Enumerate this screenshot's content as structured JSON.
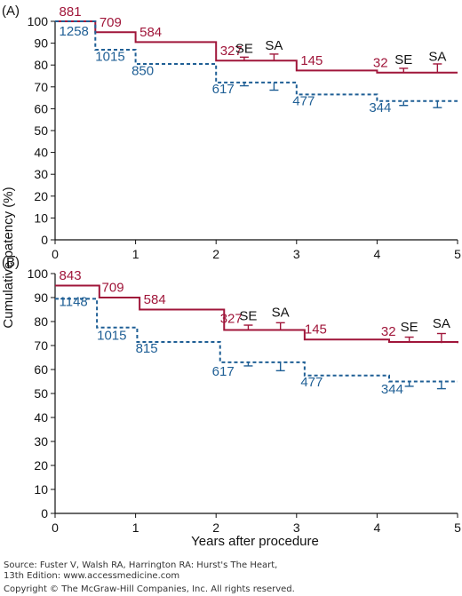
{
  "figure": {
    "ylabel": "Cumulative patency (%)",
    "xlabel": "Years after procedure"
  },
  "chart_data": [
    {
      "type": "line",
      "panel_label": "(A)",
      "xlim": [
        0,
        5
      ],
      "ylim": [
        0,
        100
      ],
      "x_ticks": [
        "0",
        "1",
        "2",
        "3",
        "4",
        "5"
      ],
      "y_ticks": [
        "0",
        "10",
        "20",
        "30",
        "40",
        "50",
        "60",
        "70",
        "80",
        "90",
        "100"
      ],
      "series": [
        {
          "color": "#a0163a",
          "style": "solid",
          "steps": [
            [
              0,
              100
            ],
            [
              0.5,
              95
            ],
            [
              1,
              90.5
            ],
            [
              2,
              82
            ],
            [
              3,
              77.5
            ],
            [
              4,
              76.5
            ],
            [
              5,
              76.5
            ]
          ],
          "at_risk": [
            {
              "x": 0.05,
              "y": 102.5,
              "text": "881"
            },
            {
              "x": 0.55,
              "y": 97.5,
              "text": "709"
            },
            {
              "x": 1.05,
              "y": 93,
              "text": "584"
            },
            {
              "x": 2.05,
              "y": 84.5,
              "text": "327"
            },
            {
              "x": 3.05,
              "y": 80,
              "text": "145"
            },
            {
              "x": 3.95,
              "y": 79,
              "text": "32"
            }
          ],
          "error_bars": [
            {
              "x": 2.35,
              "y": 82,
              "hi": 83.6
            },
            {
              "x": 2.72,
              "y": 82,
              "hi": 85
            },
            {
              "x": 4.33,
              "y": 76.5,
              "hi": 78.5
            },
            {
              "x": 4.75,
              "y": 76.5,
              "hi": 80.5
            }
          ]
        },
        {
          "color": "#1f5f95",
          "style": "dashed",
          "steps": [
            [
              0,
              100
            ],
            [
              0.5,
              87
            ],
            [
              1,
              80.5
            ],
            [
              2,
              72
            ],
            [
              3,
              66.5
            ],
            [
              4,
              63.5
            ],
            [
              5,
              63.5
            ]
          ],
          "at_risk": [
            {
              "x": 0.05,
              "y": 93.5,
              "text": "1258"
            },
            {
              "x": 0.5,
              "y": 82,
              "text": "1015"
            },
            {
              "x": 0.95,
              "y": 75.5,
              "text": "850"
            },
            {
              "x": 1.95,
              "y": 67,
              "text": "617"
            },
            {
              "x": 2.95,
              "y": 61.5,
              "text": "477"
            },
            {
              "x": 3.9,
              "y": 58.5,
              "text": "344"
            }
          ],
          "error_bars": [
            {
              "x": 2.35,
              "y": 72,
              "lo": 70.5
            },
            {
              "x": 2.72,
              "y": 72,
              "lo": 68.5
            },
            {
              "x": 4.33,
              "y": 63.5,
              "lo": 61.5
            },
            {
              "x": 4.75,
              "y": 63.5,
              "lo": 60.5
            }
          ]
        }
      ],
      "annotations": [
        {
          "x": 2.35,
          "y": 85.5,
          "text": "SE"
        },
        {
          "x": 2.72,
          "y": 87,
          "text": "SA"
        },
        {
          "x": 4.33,
          "y": 80.5,
          "text": "SE"
        },
        {
          "x": 4.75,
          "y": 82,
          "text": "SA"
        }
      ]
    },
    {
      "type": "line",
      "panel_label": "(B)",
      "xlim": [
        0,
        5
      ],
      "ylim": [
        0,
        100
      ],
      "x_ticks": [
        "0",
        "1",
        "2",
        "3",
        "4",
        "5"
      ],
      "y_ticks": [
        "0",
        "10",
        "20",
        "30",
        "40",
        "50",
        "60",
        "70",
        "80",
        "90",
        "100"
      ],
      "series": [
        {
          "color": "#a0163a",
          "style": "solid",
          "steps": [
            [
              0,
              95
            ],
            [
              0.55,
              90
            ],
            [
              1.05,
              85
            ],
            [
              2.1,
              76.5
            ],
            [
              3.1,
              72.5
            ],
            [
              4.15,
              71.5
            ],
            [
              5,
              71
            ]
          ],
          "at_risk": [
            {
              "x": 0.05,
              "y": 97.5,
              "text": "843"
            },
            {
              "x": 0.58,
              "y": 92.5,
              "text": "709"
            },
            {
              "x": 1.1,
              "y": 87.5,
              "text": "584"
            },
            {
              "x": 2.05,
              "y": 79.5,
              "text": "327"
            },
            {
              "x": 3.1,
              "y": 75,
              "text": "145"
            },
            {
              "x": 4.05,
              "y": 74,
              "text": "32"
            }
          ],
          "error_bars": [
            {
              "x": 2.4,
              "y": 76.5,
              "hi": 78.5
            },
            {
              "x": 2.8,
              "y": 76.5,
              "hi": 79.5
            },
            {
              "x": 4.4,
              "y": 71.5,
              "hi": 73.5
            },
            {
              "x": 4.8,
              "y": 71,
              "hi": 75
            }
          ]
        },
        {
          "color": "#1f5f95",
          "style": "dashed",
          "steps": [
            [
              0,
              89.5
            ],
            [
              0.52,
              77.5
            ],
            [
              1.02,
              71.5
            ],
            [
              2.05,
              63
            ],
            [
              3.1,
              57.5
            ],
            [
              4.15,
              55
            ],
            [
              5,
              55
            ]
          ],
          "at_risk": [
            {
              "x": 0.05,
              "y": 86.5,
              "text": "1148"
            },
            {
              "x": 0.52,
              "y": 72.5,
              "text": "1015"
            },
            {
              "x": 1.0,
              "y": 67,
              "text": "815"
            },
            {
              "x": 1.95,
              "y": 57.5,
              "text": "617"
            },
            {
              "x": 3.05,
              "y": 53,
              "text": "477"
            },
            {
              "x": 4.05,
              "y": 50,
              "text": "344"
            }
          ],
          "error_bars": [
            {
              "x": 2.4,
              "y": 63,
              "lo": 61.5
            },
            {
              "x": 2.8,
              "y": 63,
              "lo": 59.5
            },
            {
              "x": 4.4,
              "y": 55,
              "lo": 53
            },
            {
              "x": 4.8,
              "y": 55,
              "lo": 52
            }
          ]
        }
      ],
      "annotations": [
        {
          "x": 2.4,
          "y": 80.5,
          "text": "SE"
        },
        {
          "x": 2.8,
          "y": 82,
          "text": "SA"
        },
        {
          "x": 4.4,
          "y": 76,
          "text": "SE"
        },
        {
          "x": 4.8,
          "y": 77.5,
          "text": "SA"
        }
      ]
    }
  ],
  "footer": {
    "source_line1": "Source: Fuster V, Walsh RA, Harrington RA: Hurst's The Heart,",
    "source_line2": "13th Edition: www.accessmedicine.com",
    "copyright": "Copyright © The McGraw-Hill Companies, Inc. All rights reserved."
  }
}
